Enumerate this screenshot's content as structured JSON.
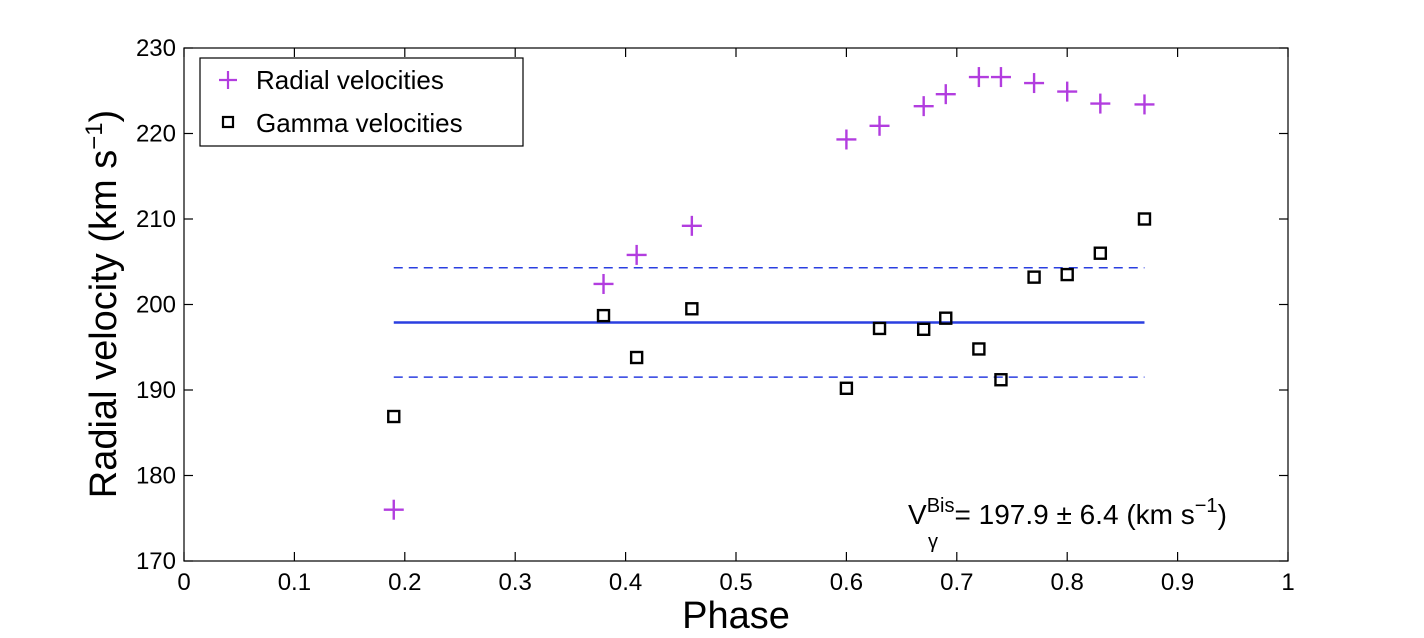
{
  "chart_data": {
    "type": "scatter",
    "xlabel": "Phase",
    "ylabel": "Radial velocity (km s",
    "ylabel_sup": "−1",
    "ylabel_close": ")",
    "xlim": [
      0,
      1
    ],
    "ylim": [
      170,
      230
    ],
    "xticks": [
      "0",
      "0.1",
      "0.2",
      "0.3",
      "0.4",
      "0.5",
      "0.6",
      "0.7",
      "0.8",
      "0.9",
      "1"
    ],
    "yticks": [
      "170",
      "180",
      "190",
      "200",
      "210",
      "220",
      "230"
    ],
    "series": [
      {
        "name": "Radial velocities",
        "marker": "plus",
        "color": "#b23ddf",
        "x": [
          0.19,
          0.38,
          0.41,
          0.46,
          0.6,
          0.63,
          0.67,
          0.69,
          0.72,
          0.74,
          0.77,
          0.8,
          0.83,
          0.87
        ],
        "y": [
          176.0,
          202.4,
          205.8,
          209.2,
          219.3,
          220.9,
          223.2,
          224.6,
          226.6,
          226.6,
          225.9,
          224.9,
          223.5,
          223.4
        ]
      },
      {
        "name": "Gamma velocities",
        "marker": "square",
        "color": "#000000",
        "x": [
          0.19,
          0.38,
          0.41,
          0.46,
          0.6,
          0.63,
          0.67,
          0.69,
          0.72,
          0.74,
          0.77,
          0.8,
          0.83,
          0.87
        ],
        "y": [
          186.9,
          198.7,
          193.8,
          199.5,
          190.2,
          197.2,
          197.1,
          198.4,
          194.8,
          191.2,
          203.2,
          203.5,
          206.0,
          210.0
        ]
      }
    ],
    "reference_lines": [
      {
        "name": "mean",
        "y": 197.9,
        "style": "solid",
        "color": "#2a3fe0",
        "x_range": [
          0.19,
          0.87
        ]
      },
      {
        "name": "upper",
        "y": 204.3,
        "style": "dashed",
        "color": "#2a3fe0",
        "x_range": [
          0.19,
          0.87
        ]
      },
      {
        "name": "lower",
        "y": 191.5,
        "style": "dashed",
        "color": "#2a3fe0",
        "x_range": [
          0.19,
          0.87
        ]
      }
    ],
    "legend_position": "top-left",
    "annotation": {
      "base": "V",
      "superscript": "Bis",
      "subscript": "γ",
      "text": "= 197.9 ± 6.4 (km s",
      "unit_sup": "−1",
      "close": ")"
    }
  }
}
